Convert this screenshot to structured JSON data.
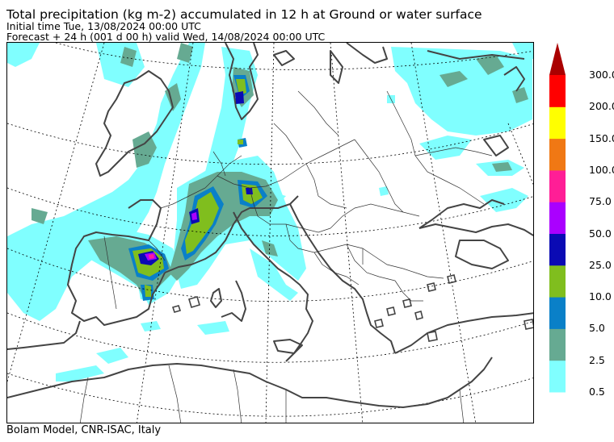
{
  "header": {
    "title": "Total precipitation (kg m-2) accumulated in  12 h at Ground or water surface",
    "initial_time": "Initial time  Tue, 13/08/2024  00:00 UTC",
    "forecast": "Forecast  +  24 h  (001 d 00 h)  valid Wed, 14/08/2024 00:00 UTC"
  },
  "footer": "Bolam Model, CNR-ISAC, Italy",
  "legend": {
    "levels": [
      {
        "label": "0.5",
        "color": "#80ffff"
      },
      {
        "label": "2.5",
        "color": "#66aa92"
      },
      {
        "label": "5.0",
        "color": "#0a80c8"
      },
      {
        "label": "10.0",
        "color": "#80be1e"
      },
      {
        "label": "25.0",
        "color": "#0a0ab4"
      },
      {
        "label": "50.0",
        "color": "#aa00ff"
      },
      {
        "label": "75.0",
        "color": "#ff1e96"
      },
      {
        "label": "100.0",
        "color": "#f07814"
      },
      {
        "label": "150.0",
        "color": "#ffff00"
      },
      {
        "label": "200.0",
        "color": "#ff0000"
      },
      {
        "label": "300.0",
        "color": "#aa0000"
      }
    ]
  }
}
